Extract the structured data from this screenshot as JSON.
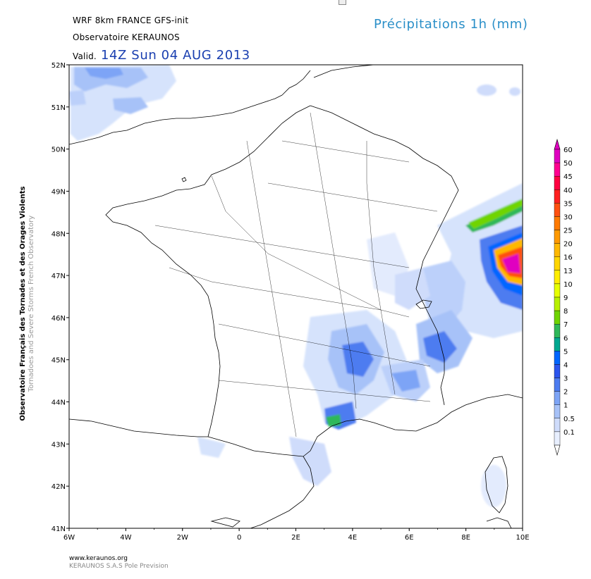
{
  "header": {
    "model": "WRF 8km FRANCE  GFS-init",
    "observatory": "Observatoire KERAUNOS",
    "valid_prefix": "Valid.",
    "valid_date": "14Z Sun 04 AUG 2013",
    "parameter": "Précipitations 1h (mm)"
  },
  "side_credit": {
    "line1": "Observatoire Français des Tornades et des Orages Violents",
    "line2": "Tornadoes and Severe Storms French Observatory"
  },
  "footer": {
    "url": "www.keraunos.org",
    "company": "KERAUNOS S.A.S Pole Prevision"
  },
  "axes": {
    "lat_labels": [
      "52N",
      "51N",
      "50N",
      "49N",
      "48N",
      "47N",
      "46N",
      "45N",
      "44N",
      "43N",
      "42N",
      "41N"
    ],
    "lon_labels": [
      "6W",
      "4W",
      "2W",
      "0",
      "2E",
      "4E",
      "6E",
      "8E",
      "10E"
    ]
  },
  "legend": {
    "units": "mm",
    "levels": [
      "60",
      "50",
      "45",
      "40",
      "35",
      "30",
      "25",
      "20",
      "16",
      "13",
      "10",
      "9",
      "8",
      "7",
      "6",
      "5",
      "4",
      "3",
      "2",
      "1",
      "0.5",
      "0.1"
    ],
    "colors": [
      "#e000c0",
      "#ff0090",
      "#ff0040",
      "#ff2020",
      "#ff5010",
      "#ff7a00",
      "#ff9900",
      "#ffb800",
      "#ffd600",
      "#ffee00",
      "#e6ff00",
      "#b8f000",
      "#6fd400",
      "#2fb85a",
      "#00a890",
      "#0066ff",
      "#2b55ee",
      "#4d7cf0",
      "#7da4f6",
      "#a7c2f8",
      "#cfdcfb",
      "#e8efff"
    ]
  }
}
